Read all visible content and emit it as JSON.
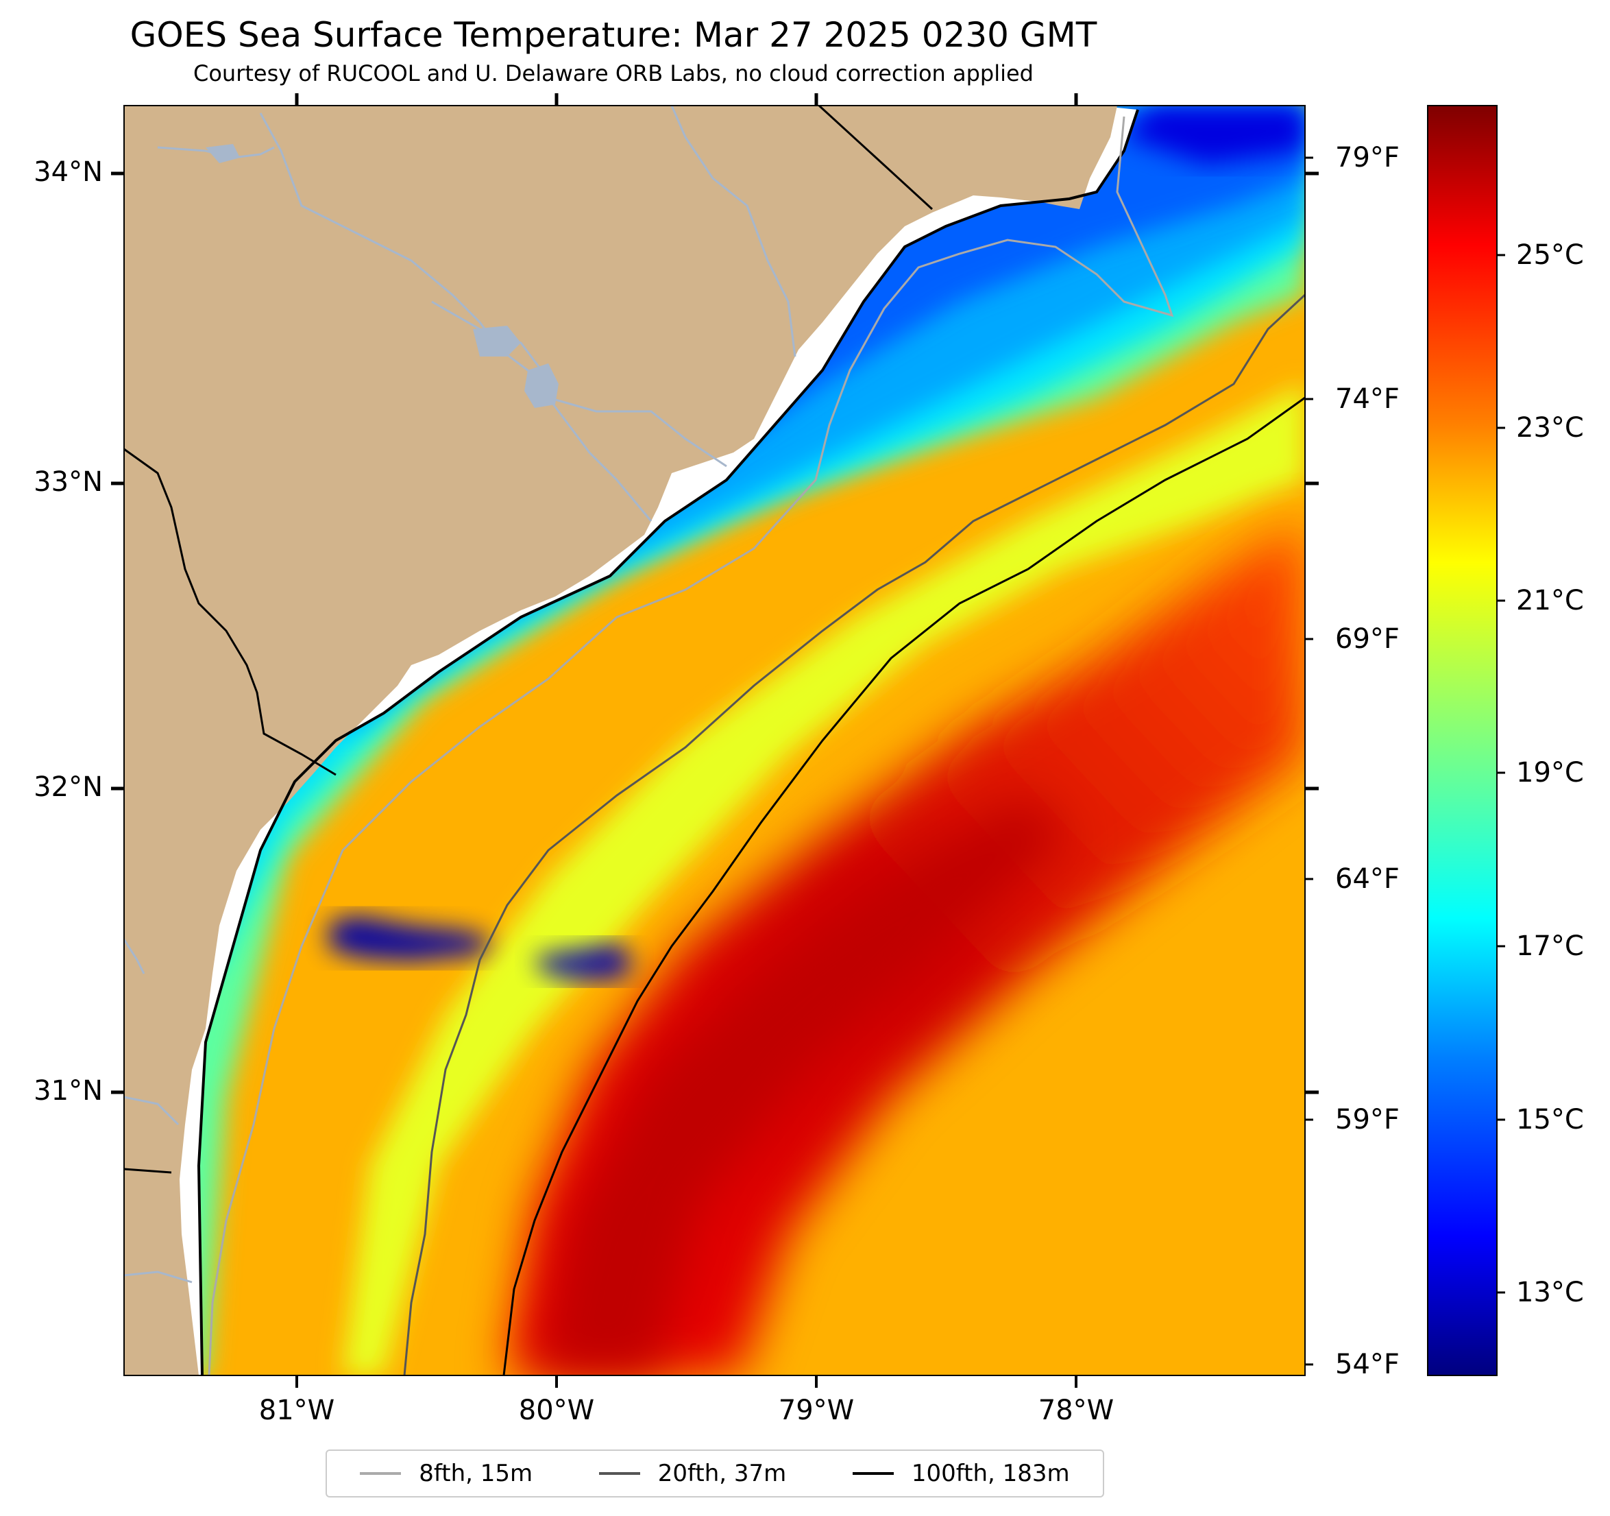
{
  "title": "GOES Sea Surface Temperature: Mar 27 2025 0230 GMT",
  "subtitle": "Courtesy of RUCOOL and U. Delaware ORB Labs, no cloud correction applied",
  "map": {
    "lat_labels": [
      "34°N",
      "33°N",
      "32°N",
      "31°N"
    ],
    "lon_labels": [
      "81°W",
      "80°W",
      "79°W",
      "78°W"
    ],
    "fahrenheit_labels": [
      "79°F",
      "74°F",
      "69°F",
      "64°F",
      "59°F",
      "54°F"
    ],
    "colors": {
      "land": "#d2b48c",
      "coastline": "#000000",
      "no_data": "#ffffff",
      "rivers": "#a7b7cc"
    }
  },
  "colorbar": {
    "labels": [
      "25°C",
      "23°C",
      "21°C",
      "19°C",
      "17°C",
      "15°C",
      "13°C"
    ],
    "cmap_stops": [
      "#00007f",
      "#0000ff",
      "#007fff",
      "#00ffff",
      "#7fff7f",
      "#ffff00",
      "#ff7f00",
      "#ff0000",
      "#7f0000"
    ]
  },
  "legend": {
    "items": [
      {
        "label": "8fth, 15m",
        "color": "#aaaaaa"
      },
      {
        "label": "20fth, 37m",
        "color": "#555555"
      },
      {
        "label": "100fth, 183m",
        "color": "#000000"
      }
    ]
  }
}
